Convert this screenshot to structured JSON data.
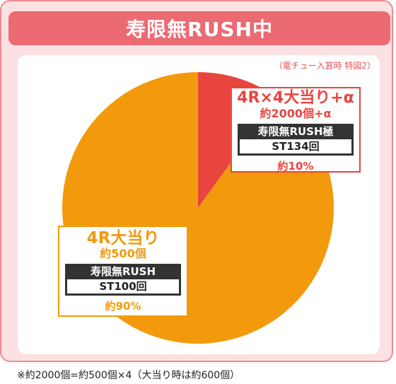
{
  "header": {
    "title": "寿限無RUSH中"
  },
  "note": "（電チュー入賞時 特図2）",
  "colors": {
    "segment_small": "#e8453f",
    "segment_large": "#f29a0c"
  },
  "chart_data": {
    "type": "pie",
    "title": "寿限無RUSH中",
    "slices": [
      {
        "label": "4R×4大当り+α",
        "amount": "約2000個+α",
        "mode": "寿限無RUSH極",
        "st": "ST134回",
        "percent_label": "約10%",
        "value": 10,
        "color": "#e8453f"
      },
      {
        "label": "4R大当り",
        "amount": "約500個",
        "mode": "寿限無RUSH",
        "st": "ST100回",
        "percent_label": "約90%",
        "value": 90,
        "color": "#f29a0c"
      }
    ]
  },
  "footnote": "※約2000個=約500個×4（大当り時は約600個）"
}
